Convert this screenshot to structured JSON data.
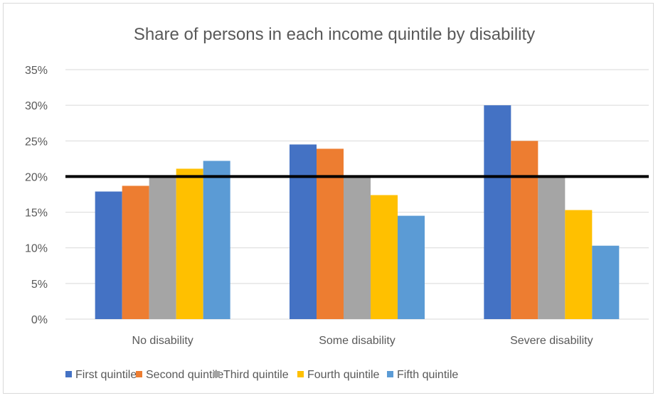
{
  "chart_data": {
    "type": "bar",
    "title": "Share of persons in each income quintile by disability",
    "categories": [
      "No disability",
      "Some disability",
      "Severe disability"
    ],
    "series": [
      {
        "name": "First quintile",
        "color": "#4472c4",
        "values": [
          17.9,
          24.5,
          30.0
        ]
      },
      {
        "name": "Second quintile",
        "color": "#ed7d31",
        "values": [
          18.7,
          23.9,
          25.0
        ]
      },
      {
        "name": "Third quintile",
        "color": "#a5a5a5",
        "values": [
          20.0,
          20.0,
          20.0
        ]
      },
      {
        "name": "Fourth quintile",
        "color": "#ffc000",
        "values": [
          21.1,
          17.4,
          15.3
        ]
      },
      {
        "name": "Fifth quintile",
        "color": "#5b9bd5",
        "values": [
          22.2,
          14.5,
          10.3
        ]
      }
    ],
    "reference_line": {
      "value": 20,
      "color": "#000000"
    },
    "ylim": [
      0,
      35
    ],
    "yticks": [
      "0%",
      "5%",
      "10%",
      "15%",
      "20%",
      "25%",
      "30%",
      "35%"
    ],
    "ytick_values": [
      0,
      5,
      10,
      15,
      20,
      25,
      30,
      35
    ],
    "grid": true,
    "legend_position": "bottom",
    "gridline_color": "#d9d9d9"
  }
}
